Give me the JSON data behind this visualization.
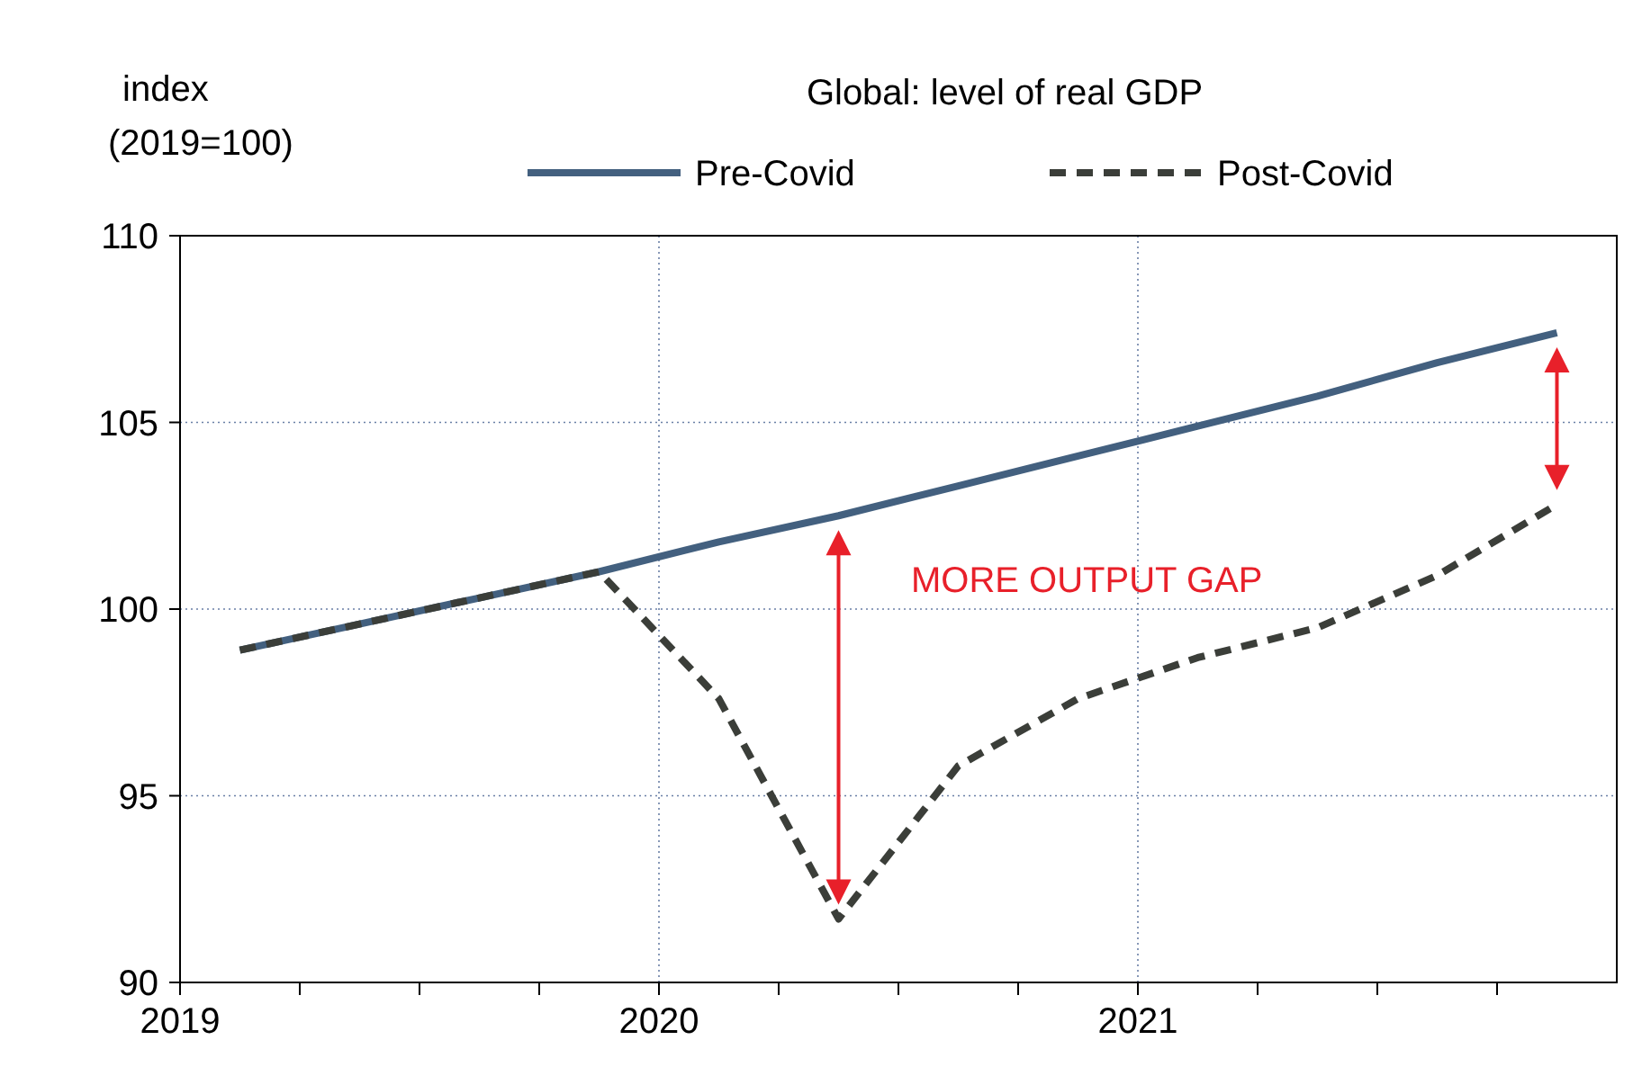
{
  "chart_data": {
    "type": "line",
    "title": "Global: level of real GDP",
    "ylabel": "index\n(2019=100)",
    "x": [
      2019.125,
      2019.375,
      2019.625,
      2019.875,
      2020.125,
      2020.375,
      2020.625,
      2020.875,
      2021.125,
      2021.375,
      2021.625,
      2021.875
    ],
    "series": [
      {
        "name": "Pre-Covid",
        "color": "#43607f",
        "line_style": "solid",
        "values": [
          98.9,
          99.6,
          100.3,
          101.0,
          101.8,
          102.5,
          103.3,
          104.1,
          104.9,
          105.7,
          106.6,
          107.4
        ]
      },
      {
        "name": "Post-Covid",
        "color": "#3b3e39",
        "line_style": "dashed",
        "values": [
          98.9,
          99.6,
          100.3,
          101.0,
          97.6,
          91.7,
          95.8,
          97.6,
          98.7,
          99.5,
          100.9,
          102.8
        ]
      }
    ],
    "xlim": [
      2019,
      2022
    ],
    "xticks": [
      2019,
      {
        "value": 2019.25,
        "label": null
      },
      {
        "value": 2019.5,
        "label": null
      },
      {
        "value": 2019.75,
        "label": null
      },
      2020,
      {
        "value": 2020.25,
        "label": null
      },
      {
        "value": 2020.5,
        "label": null
      },
      {
        "value": 2020.75,
        "label": null
      },
      2021,
      {
        "value": 2021.25,
        "label": null
      },
      {
        "value": 2021.5,
        "label": null
      },
      {
        "value": 2021.75,
        "label": null
      }
    ],
    "ylim": [
      90,
      110
    ],
    "yticks": [
      90,
      95,
      100,
      105,
      110
    ],
    "grid": true,
    "legend": "top",
    "marker": "none",
    "annotations": [
      "MORE OUTPUT GAP"
    ]
  }
}
